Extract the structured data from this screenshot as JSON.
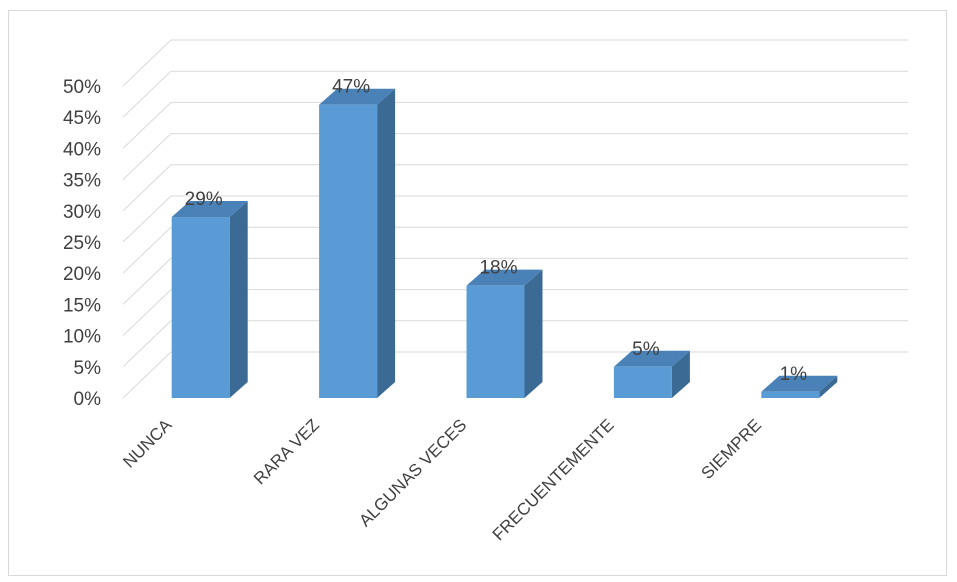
{
  "chart_data": {
    "type": "bar",
    "style": "3d-column",
    "title": "",
    "xlabel": "",
    "ylabel": "",
    "categories": [
      "NUNCA",
      "RARA VEZ",
      "ALGUNAS VECES",
      "FRECUENTEMENTE",
      "SIEMPRE"
    ],
    "values": [
      29,
      47,
      18,
      5,
      1
    ],
    "data_labels": [
      "29%",
      "47%",
      "18%",
      "5%",
      "1%"
    ],
    "y_ticks": [
      "0%",
      "5%",
      "10%",
      "15%",
      "20%",
      "25%",
      "30%",
      "35%",
      "40%",
      "45%",
      "50%"
    ],
    "ylim": [
      0,
      50
    ],
    "grid": true,
    "legend": "none",
    "colors": {
      "bar_front": "#5b9bd5",
      "bar_side": "#3b6a94",
      "bar_top": "#4a82b8",
      "grid": "#d9d9d9",
      "text": "#404040"
    }
  }
}
